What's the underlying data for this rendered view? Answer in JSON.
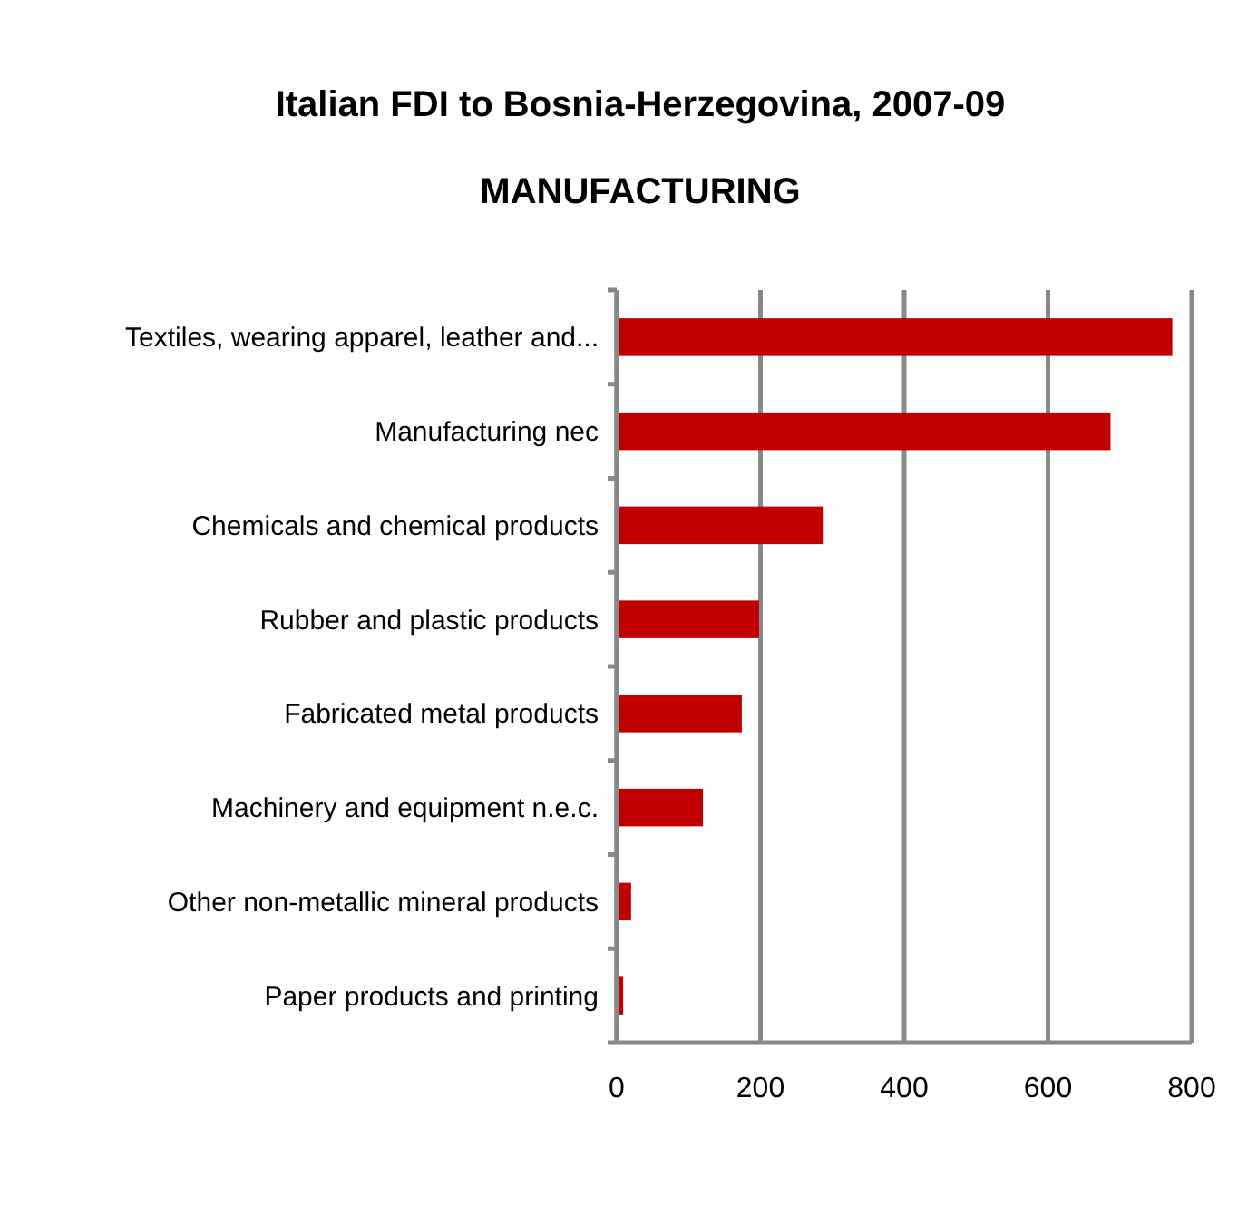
{
  "chart_data": {
    "type": "bar",
    "orientation": "horizontal",
    "title": "Italian FDI to Bosnia-Herzegovina, 2007-09",
    "subtitle": "MANUFACTURING",
    "categories": [
      "Textiles, wearing apparel, leather and...",
      "Manufacturing nec",
      "Chemicals and chemical products",
      "Rubber and plastic products",
      "Fabricated metal products",
      "Machinery and equipment n.e.c.",
      "Other non-metallic mineral products",
      "Paper products and printing"
    ],
    "values": [
      773,
      687,
      288,
      198,
      174,
      120,
      20,
      9
    ],
    "color": "#c00000",
    "xlim": [
      0,
      800
    ],
    "xticks": [
      0,
      200,
      400,
      600,
      800
    ],
    "grid": "x"
  }
}
